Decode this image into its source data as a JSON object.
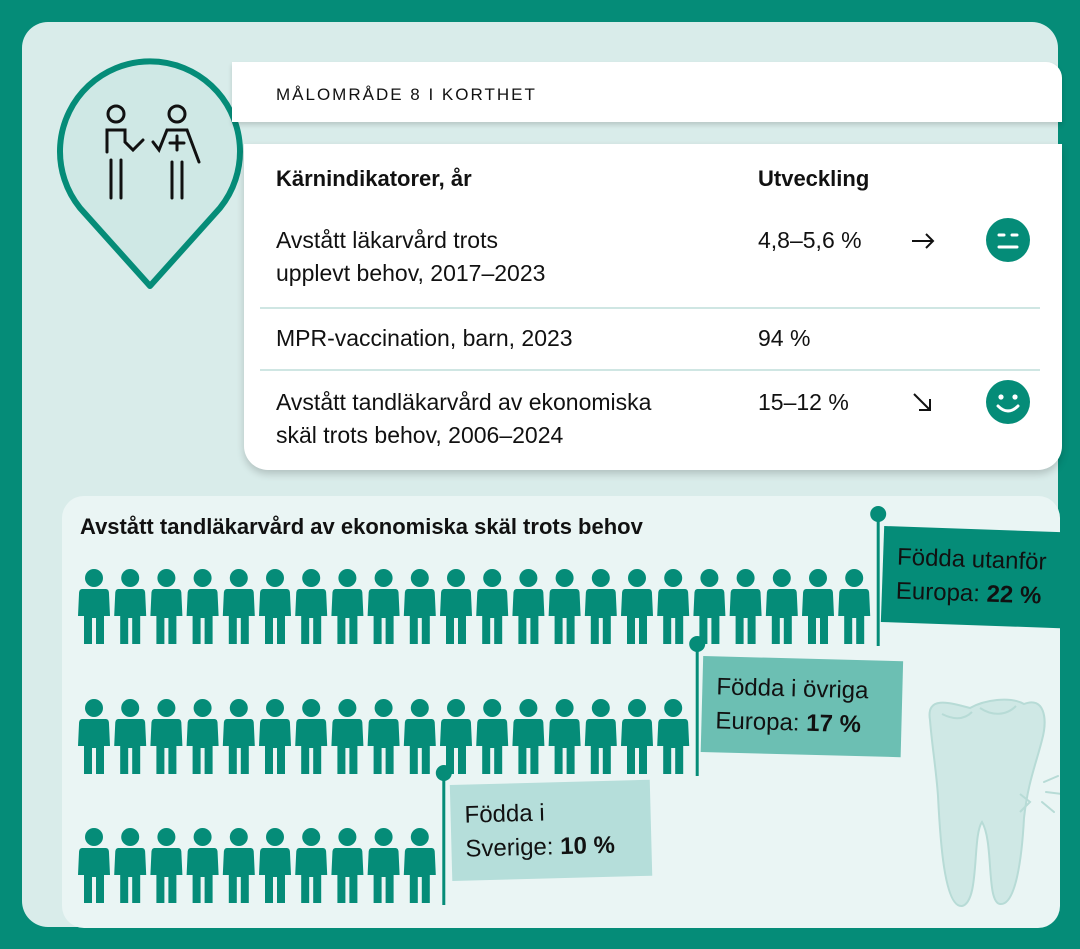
{
  "header": {
    "title": "MÅLOMRÅDE 8 I KORTHET"
  },
  "table": {
    "col_indicator": "Kärnindikatorer, år",
    "col_trend": "Utveckling",
    "rows": [
      {
        "label_line1": "Avstått läkarvård trots",
        "label_line2": "upplevt behov, 2017–2023",
        "value": "4,8–5,6 %",
        "trend": "flat-arrow-icon",
        "face": "neutral-face-icon"
      },
      {
        "label_line1": "MPR-vaccination, barn, 2023",
        "label_line2": "",
        "value": "94 %",
        "trend": "",
        "face": ""
      },
      {
        "label_line1": "Avstått tandläkarvård av ekonomiska",
        "label_line2": "skäl trots behov, 2006–2024",
        "value": "15–12 %",
        "trend": "down-arrow-icon",
        "face": "happy-face-icon"
      }
    ]
  },
  "colors": {
    "teal": "#058c78",
    "light_teal": "#6cbfb3",
    "pale_teal": "#b5deda",
    "card_bg": "#d9ecea"
  },
  "chart_data": {
    "type": "pictogram",
    "title": "Avstått tandläkarvård av ekonomiska skäl trots behov",
    "unit": "%",
    "series": [
      {
        "name": "Födda utanför Europa",
        "label_line1": "Födda utanför",
        "label_line2_prefix": "Europa: ",
        "value_text": "22 %",
        "value": 22,
        "flag_color": "#058c78"
      },
      {
        "name": "Födda i övriga Europa",
        "label_line1": "Födda i övriga",
        "label_line2_prefix": "Europa: ",
        "value_text": "17 %",
        "value": 17,
        "flag_color": "#6cbfb3"
      },
      {
        "name": "Födda i Sverige",
        "label_line1": "Födda i",
        "label_line2_prefix": "Sverige: ",
        "value_text": "10 %",
        "value": 10,
        "flag_color": "#b5deda"
      }
    ]
  }
}
